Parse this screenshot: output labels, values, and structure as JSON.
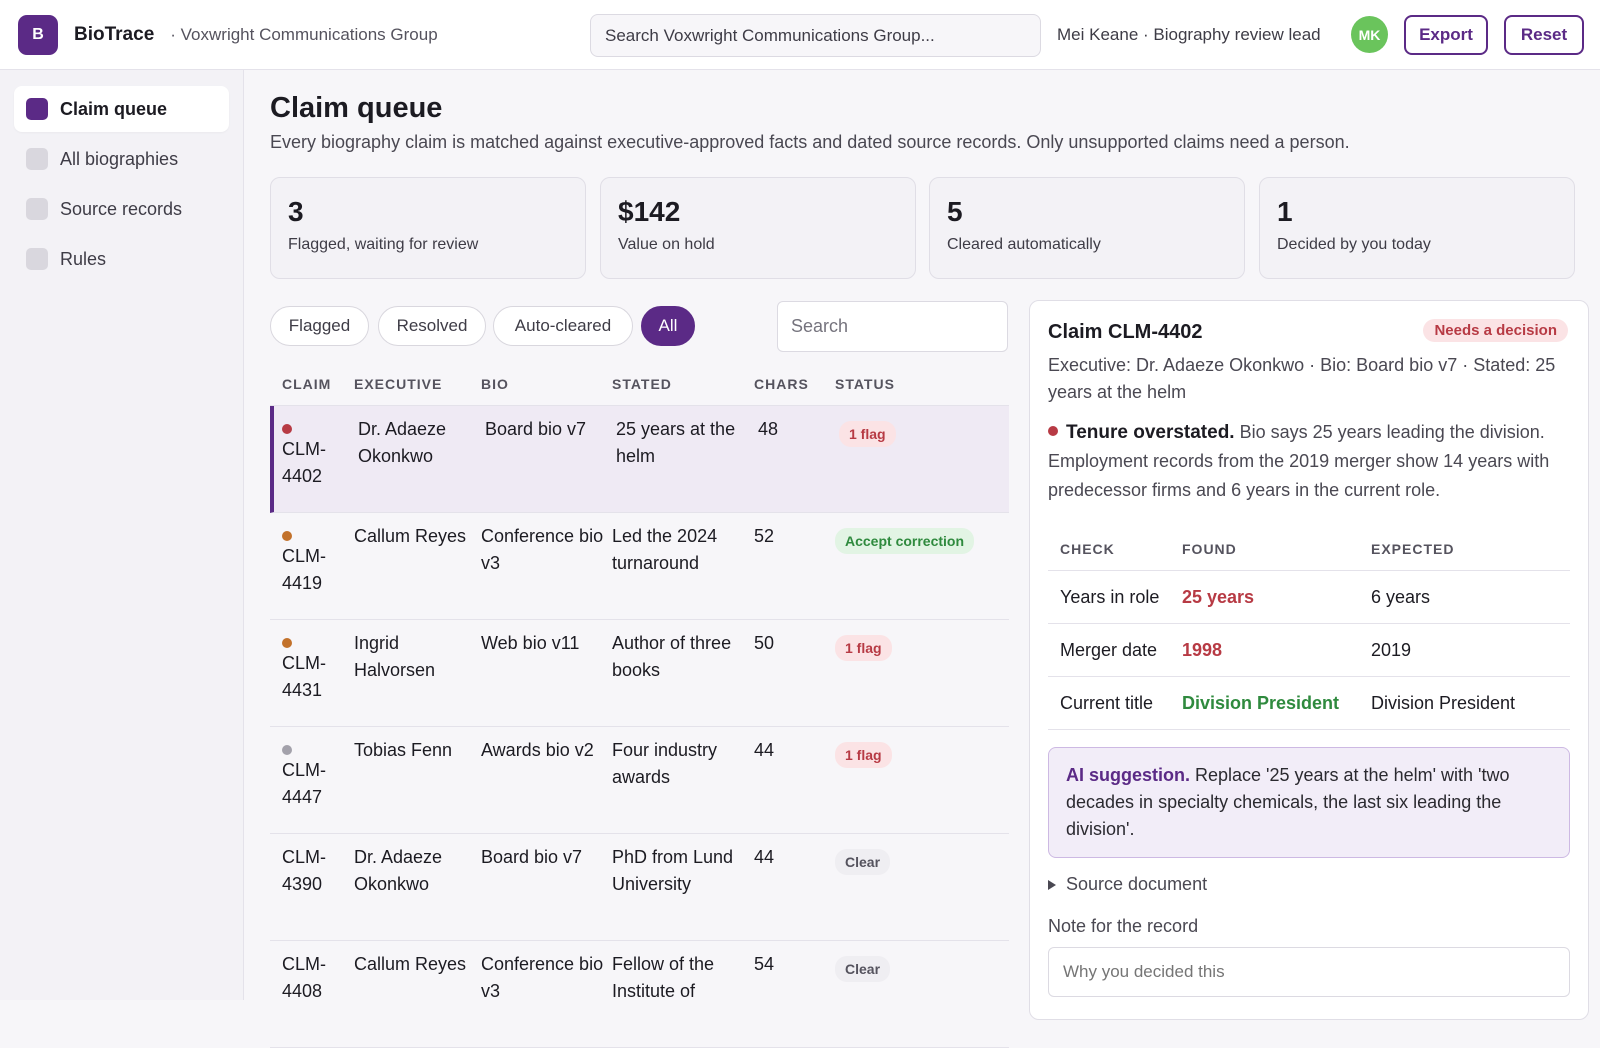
{
  "header": {
    "logo_letter": "B",
    "brand": "BioTrace",
    "org": "· Voxwright Communications Group",
    "search_placeholder": "Search Voxwright Communications Group...",
    "user": "Mei Keane · Biography review lead",
    "avatar_initials": "MK",
    "export_label": "Export",
    "reset_label": "Reset"
  },
  "sidebar": {
    "items": [
      {
        "label": "Claim queue",
        "active": true
      },
      {
        "label": "All biographies",
        "active": false
      },
      {
        "label": "Source records",
        "active": false
      },
      {
        "label": "Rules",
        "active": false
      }
    ]
  },
  "page": {
    "title": "Claim queue",
    "subtitle": "Every biography claim is matched against executive-approved facts and dated source records. Only unsupported claims need a person."
  },
  "stats": [
    {
      "value": "3",
      "label": "Flagged, waiting for review"
    },
    {
      "value": "$142",
      "label": "Value on hold"
    },
    {
      "value": "5",
      "label": "Cleared automatically"
    },
    {
      "value": "1",
      "label": "Decided by you today"
    }
  ],
  "filters": {
    "chips": [
      "Flagged",
      "Resolved",
      "Auto-cleared",
      "All"
    ],
    "active": "All",
    "search_placeholder": "Search"
  },
  "table": {
    "columns": [
      "CLAIM",
      "EXECUTIVE",
      "BIO",
      "STATED",
      "CHARS",
      "STATUS"
    ],
    "rows": [
      {
        "claim_prefix": "CLM-",
        "claim_num": "4402",
        "executive": "Dr. Adaeze Okonkwo",
        "bio": "Board bio v7",
        "stated": "25 years at the helm",
        "chars": "48",
        "status": "1 flag",
        "status_type": "flag",
        "dot_color": "#b73a44"
      },
      {
        "claim_prefix": "CLM-",
        "claim_num": "4419",
        "executive": "Callum Reyes",
        "bio": "Conference bio v3",
        "stated": "Led the 2024 turnaround",
        "chars": "52",
        "status": "Accept correction",
        "status_type": "accept",
        "dot_color": "#c2712b"
      },
      {
        "claim_prefix": "CLM-",
        "claim_num": "4431",
        "executive": "Ingrid Halvorsen",
        "bio": "Web bio v11",
        "stated": "Author of three books",
        "chars": "50",
        "status": "1 flag",
        "status_type": "flag",
        "dot_color": "#c2712b"
      },
      {
        "claim_prefix": "CLM-",
        "claim_num": "4447",
        "executive": "Tobias Fenn",
        "bio": "Awards bio v2",
        "stated": "Four industry awards",
        "chars": "44",
        "status": "1 flag",
        "status_type": "flag",
        "dot_color": "#a3a1ab"
      },
      {
        "claim_prefix": "CLM-",
        "claim_num": "4390",
        "executive": "Dr. Adaeze Okonkwo",
        "bio": "Board bio v7",
        "stated": "PhD from Lund University",
        "chars": "44",
        "status": "Clear",
        "status_type": "clear",
        "dot_color": ""
      },
      {
        "claim_prefix": "CLM-",
        "claim_num": "4408",
        "executive": "Callum Reyes",
        "bio": "Conference bio v3",
        "stated": "Fellow of the Institute of",
        "chars": "54",
        "status": "Clear",
        "status_type": "clear",
        "dot_color": ""
      }
    ]
  },
  "detail": {
    "title": "Claim CLM-4402",
    "badge": "Needs a decision",
    "meta": "Executive: Dr. Adaeze Okonkwo · Bio: Board bio v7 · Stated: 25 years at the helm",
    "finding_title": "Tenure overstated.",
    "finding_text": " Bio says 25 years leading the division. Employment records from the 2019 merger show 14 years with predecessor firms and 6 years in the current role.",
    "checks_columns": [
      "CHECK",
      "FOUND",
      "EXPECTED"
    ],
    "checks": [
      {
        "check": "Years in role",
        "found": "25 years",
        "expected": "6 years",
        "ok": false
      },
      {
        "check": "Merger date",
        "found": "1998",
        "expected": "2019",
        "ok": false
      },
      {
        "check": "Current title",
        "found": "Division President",
        "expected": "Division President",
        "ok": true
      }
    ],
    "ai_label": "AI suggestion.",
    "ai_text": " Replace '25 years at the helm' with 'two decades in specialty chemicals, the last six leading the division'.",
    "source_label": "Source document",
    "note_label": "Note for the record",
    "note_placeholder": "Why you decided this"
  }
}
